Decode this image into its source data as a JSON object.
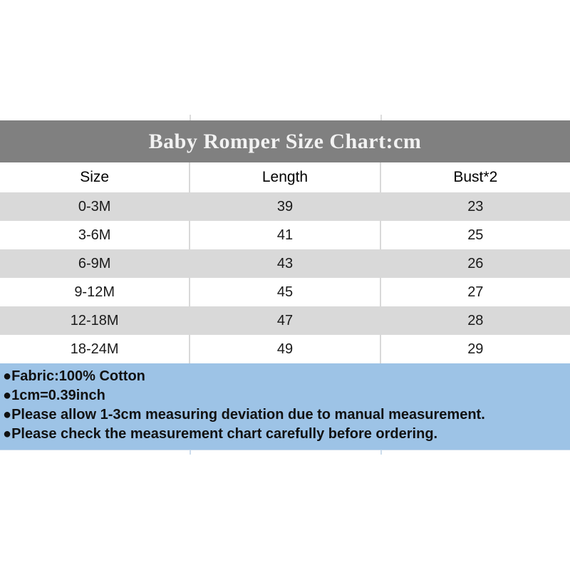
{
  "title": "Baby Romper Size Chart:cm",
  "table": {
    "columns": [
      "Size",
      "Length",
      "Bust*2"
    ],
    "rows": [
      {
        "size": "0-3M",
        "length": "39",
        "bust": "23"
      },
      {
        "size": "3-6M",
        "length": "41",
        "bust": "25"
      },
      {
        "size": "6-9M",
        "length": "43",
        "bust": "26"
      },
      {
        "size": "9-12M",
        "length": "45",
        "bust": "27"
      },
      {
        "size": "12-18M",
        "length": "47",
        "bust": "28"
      },
      {
        "size": "18-24M",
        "length": "49",
        "bust": "29"
      }
    ]
  },
  "notes": {
    "items": [
      "●Fabric:100% Cotton",
      "●1cm=0.39inch",
      "●Please allow 1-3cm measuring deviation due to manual measurement.",
      "●Please check the measurement chart carefully before ordering."
    ]
  },
  "colors": {
    "title_bar_bg": "#808080",
    "title_text": "#f2f2f2",
    "alt_row_bg": "#d9d9d9",
    "notes_bg": "#9dc3e6",
    "body_text": "#1a1a1a"
  }
}
